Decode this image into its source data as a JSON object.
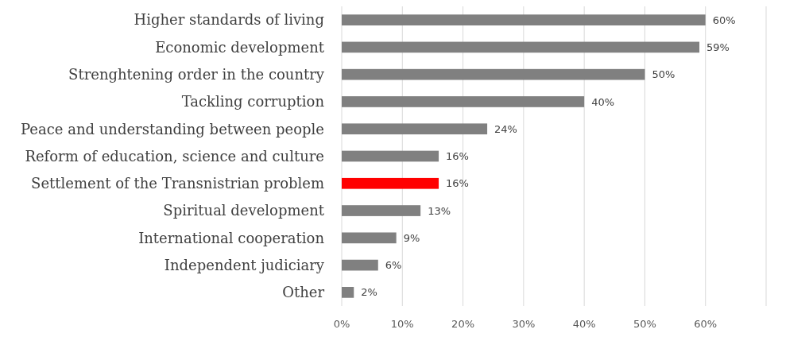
{
  "chart_data": {
    "type": "bar",
    "orientation": "horizontal",
    "categories": [
      "Higher standards of living",
      "Economic development",
      "Strenghtening order in the country",
      "Tackling corruption",
      "Peace and understanding between people",
      "Reform of education, science and culture",
      "Settlement of the Transnistrian problem",
      "Spiritual development",
      "International cooperation",
      "Independent judiciary",
      "Other"
    ],
    "values": [
      60,
      59,
      50,
      40,
      24,
      16,
      16,
      13,
      9,
      6,
      2
    ],
    "value_labels": [
      "60%",
      "59%",
      "50%",
      "40%",
      "24%",
      "16%",
      "16%",
      "13%",
      "9%",
      "6%",
      "2%"
    ],
    "colors": [
      "#808080",
      "#808080",
      "#808080",
      "#808080",
      "#808080",
      "#808080",
      "#ff0000",
      "#808080",
      "#808080",
      "#808080",
      "#808080"
    ],
    "xlim": [
      0,
      70
    ],
    "xticks": [
      {
        "value": 0,
        "label": "0%"
      },
      {
        "value": 10,
        "label": "10%"
      },
      {
        "value": 20,
        "label": "20%"
      },
      {
        "value": 30,
        "label": "30%"
      },
      {
        "value": 40,
        "label": "40%"
      },
      {
        "value": 50,
        "label": "50%"
      },
      {
        "value": 60,
        "label": "60%"
      },
      {
        "value": 70,
        "label": null
      }
    ],
    "grid": "x"
  }
}
